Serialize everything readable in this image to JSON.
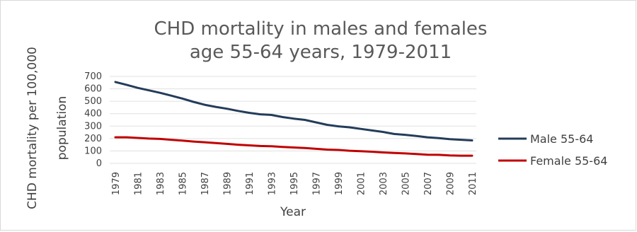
{
  "chart_data": {
    "type": "line",
    "title": [
      "CHD mortality in males and females",
      "age 55-64 years, 1979-2011"
    ],
    "xlabel": "Year",
    "ylabel": [
      "CHD mortality per 100,000",
      "population"
    ],
    "ylim": [
      0,
      700
    ],
    "yticks": [
      "700",
      "600",
      "500",
      "400",
      "300",
      "200",
      "100",
      "0"
    ],
    "grid": true,
    "legend_position": "right",
    "x": [
      1979,
      1980,
      1981,
      1982,
      1983,
      1984,
      1985,
      1986,
      1987,
      1988,
      1989,
      1990,
      1991,
      1992,
      1993,
      1994,
      1995,
      1996,
      1997,
      1998,
      1999,
      2000,
      2001,
      2002,
      2003,
      2004,
      2005,
      2006,
      2007,
      2008,
      2009,
      2010,
      2011
    ],
    "xticks": [
      "1979",
      "1981",
      "1983",
      "1985",
      "1987",
      "1989",
      "1991",
      "1993",
      "1995",
      "1997",
      "1999",
      "2001",
      "2003",
      "2005",
      "2007",
      "2009",
      "2011"
    ],
    "series": [
      {
        "name": "Male 55-64",
        "color": "#243c5a",
        "values": [
          655,
          632,
          608,
          588,
          568,
          545,
          522,
          495,
          472,
          455,
          440,
          422,
          407,
          395,
          390,
          373,
          360,
          350,
          330,
          310,
          298,
          290,
          278,
          265,
          253,
          237,
          230,
          220,
          210,
          203,
          195,
          190,
          185
        ]
      },
      {
        "name": "Female 55-64",
        "color": "#c00000",
        "values": [
          210,
          210,
          205,
          200,
          197,
          190,
          183,
          176,
          170,
          164,
          157,
          150,
          145,
          140,
          138,
          132,
          128,
          124,
          117,
          111,
          108,
          102,
          98,
          94,
          88,
          84,
          80,
          75,
          70,
          69,
          64,
          62,
          62
        ]
      }
    ]
  }
}
